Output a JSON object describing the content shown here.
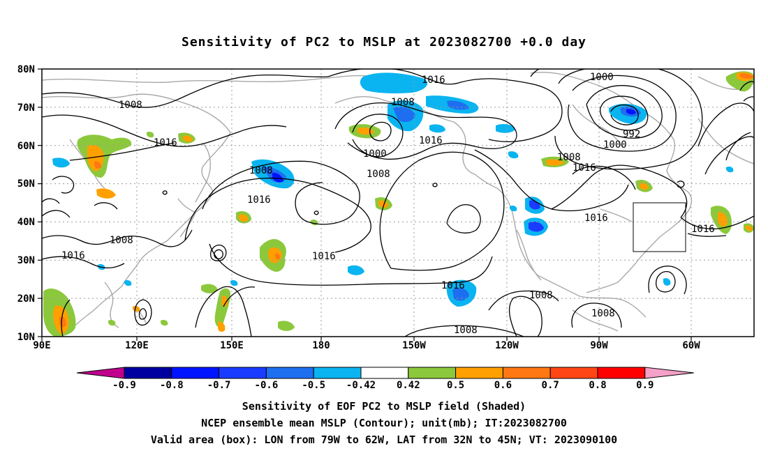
{
  "title": "Sensitivity of PC2 to MSLP at 2023082700 +0.0 day",
  "map": {
    "lat_labels": [
      "80N",
      "70N",
      "60N",
      "50N",
      "40N",
      "30N",
      "20N",
      "10N"
    ],
    "lon_labels": [
      "90E",
      "120E",
      "150E",
      "180",
      "150W",
      "120W",
      "90W",
      "60W"
    ],
    "contour_labels": [
      "1016",
      "1008",
      "1016",
      "1008",
      "1000",
      "1016",
      "1008",
      "1000",
      "992",
      "1000",
      "1008",
      "1016",
      "1016",
      "1008",
      "1016",
      "1016",
      "1008",
      "1016",
      "1016",
      "1016",
      "1008",
      "1008",
      "1008",
      "1016"
    ],
    "valid_box": {
      "lon_from": "79W",
      "lon_to": "62W",
      "lat_from": "32N",
      "lat_to": "45N"
    }
  },
  "colorbar": {
    "labels": [
      "-0.9",
      "-0.8",
      "-0.7",
      "-0.6",
      "-0.5",
      "-0.42",
      "0.42",
      "0.5",
      "0.6",
      "0.7",
      "0.8",
      "0.9"
    ],
    "colors": [
      "#c0008c",
      "#0000a0",
      "#0014ff",
      "#1a3cff",
      "#1e6ef0",
      "#0ab4f0",
      "#ffffff",
      "#8cc83c",
      "#ffa000",
      "#ff7814",
      "#ff4614",
      "#ff0000",
      "#f5a0c8"
    ]
  },
  "captions": {
    "line1": "Sensitivity of EOF PC2 to MSLP field (Shaded)",
    "line2": "NCEP ensemble mean MSLP (Contour); unit(mb); IT:2023082700",
    "line3": "Valid area (box): LON from 79W to 62W, LAT from 32N to 45N; VT: 2023090100"
  }
}
